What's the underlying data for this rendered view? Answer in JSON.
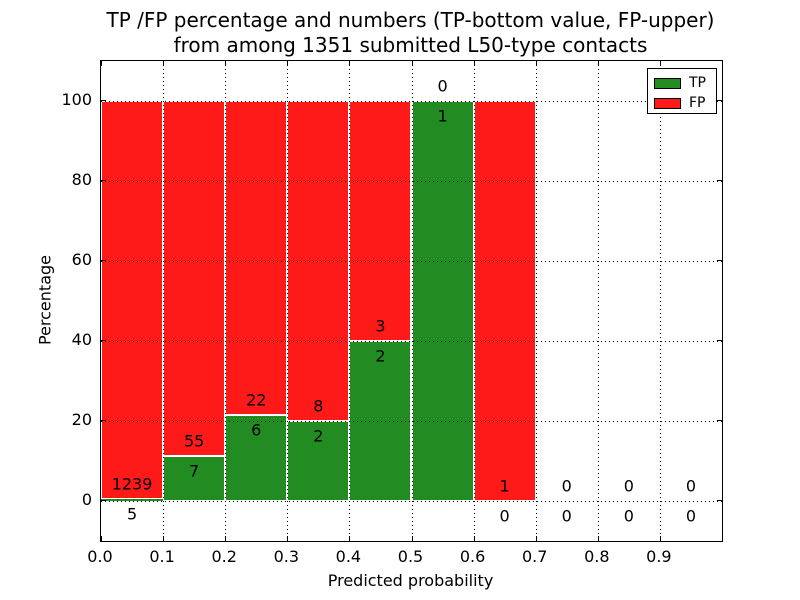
{
  "figure": {
    "title_line1": "TP /FP percentage and numbers (TP-bottom value, FP-upper)",
    "title_line2": "from among 1351 submitted L50-type contacts"
  },
  "colors": {
    "tp_green": "#228B22",
    "fp_red": "#FF1A1A",
    "text": "#000000",
    "background": "#FFFFFF"
  },
  "chart_data": {
    "type": "bar",
    "stacked": true,
    "title": "TP /FP percentage and numbers (TP-bottom value, FP-upper)\nfrom among 1351 submitted L50-type contacts",
    "xlabel": "Predicted probability",
    "ylabel": "Percentage",
    "xlim": [
      0.0,
      1.0
    ],
    "ylim": [
      -10,
      110
    ],
    "xticks": [
      "0.0",
      "0.1",
      "0.2",
      "0.3",
      "0.4",
      "0.5",
      "0.6",
      "0.7",
      "0.8",
      "0.9"
    ],
    "yticks": [
      0,
      20,
      40,
      60,
      80,
      100
    ],
    "grid": true,
    "grid_style": "dotted",
    "total_contacts": 1351,
    "legend": {
      "position": "upper right",
      "entries": [
        {
          "label": "TP",
          "color": "#228B22"
        },
        {
          "label": "FP",
          "color": "#FF1A1A"
        }
      ]
    },
    "bins": [
      {
        "range": [
          0.0,
          0.1
        ],
        "tp_count": 5,
        "fp_count": 1239,
        "tp_percent": 0.4,
        "fp_percent": 99.6
      },
      {
        "range": [
          0.1,
          0.2
        ],
        "tp_count": 7,
        "fp_count": 55,
        "tp_percent": 11.3,
        "fp_percent": 88.7
      },
      {
        "range": [
          0.2,
          0.3
        ],
        "tp_count": 6,
        "fp_count": 22,
        "tp_percent": 21.4,
        "fp_percent": 78.6
      },
      {
        "range": [
          0.3,
          0.4
        ],
        "tp_count": 2,
        "fp_count": 8,
        "tp_percent": 20.0,
        "fp_percent": 80.0
      },
      {
        "range": [
          0.4,
          0.5
        ],
        "tp_count": 2,
        "fp_count": 3,
        "tp_percent": 40.0,
        "fp_percent": 60.0
      },
      {
        "range": [
          0.5,
          0.6
        ],
        "tp_count": 1,
        "fp_count": 0,
        "tp_percent": 100.0,
        "fp_percent": 0.0
      },
      {
        "range": [
          0.6,
          0.7
        ],
        "tp_count": 0,
        "fp_count": 1,
        "tp_percent": 0.0,
        "fp_percent": 100.0
      },
      {
        "range": [
          0.7,
          0.8
        ],
        "tp_count": 0,
        "fp_count": 0,
        "tp_percent": 0.0,
        "fp_percent": 0.0
      },
      {
        "range": [
          0.8,
          0.9
        ],
        "tp_count": 0,
        "fp_count": 0,
        "tp_percent": 0.0,
        "fp_percent": 0.0
      },
      {
        "range": [
          0.9,
          1.0
        ],
        "tp_count": 0,
        "fp_count": 0,
        "tp_percent": 0.0,
        "fp_percent": 0.0
      }
    ]
  }
}
